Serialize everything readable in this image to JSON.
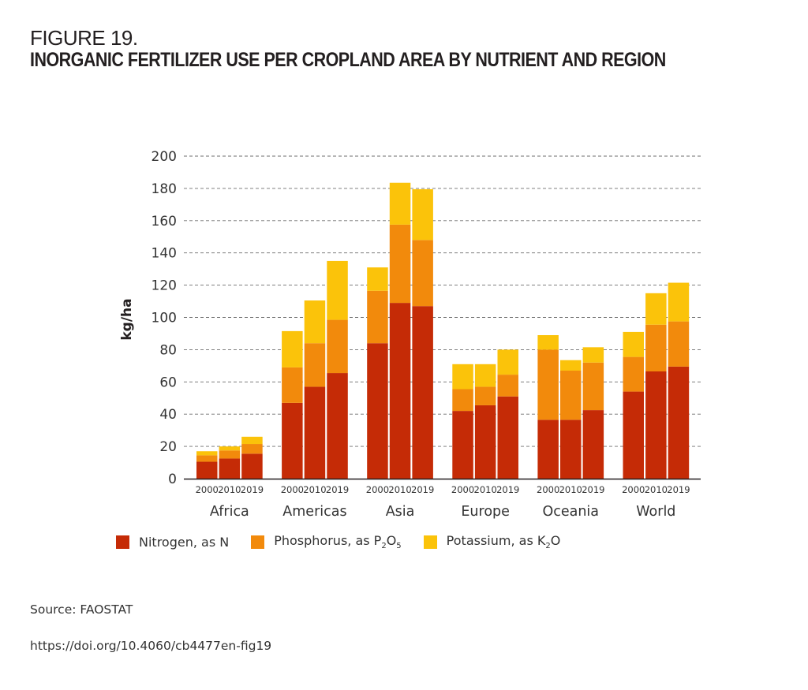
{
  "figure": {
    "label": "FIGURE 19.",
    "title": "INORGANIC FERTILIZER USE PER CROPLAND AREA BY NUTRIENT AND REGION"
  },
  "footer": {
    "source": "Source: FAOSTAT",
    "doi": "https://doi.org/10.4060/cb4477en-fig19"
  },
  "legend": [
    {
      "label_main": "Nitrogen, as N",
      "formula": null,
      "color": "#c52b06"
    },
    {
      "label_main": "Phosphorus, as P",
      "sub1": "2",
      "mid": "O",
      "sub2": "5",
      "color": "#f28a0c"
    },
    {
      "label_main": "Potassium, as K",
      "sub1": "2",
      "mid": "O",
      "sub2": "",
      "color": "#fbc30a"
    }
  ],
  "chart_data": {
    "type": "bar",
    "stacked": true,
    "title": "INORGANIC FERTILIZER USE PER CROPLAND AREA BY NUTRIENT AND REGION",
    "xlabel": "",
    "ylabel": "kg/ha",
    "ylim": [
      0,
      200
    ],
    "yticks": [
      0,
      20,
      40,
      60,
      80,
      100,
      120,
      140,
      160,
      180,
      200
    ],
    "grid": "horizontal-dashed",
    "legend_position": "bottom",
    "groups": [
      "Africa",
      "Americas",
      "Asia",
      "Europe",
      "Oceania",
      "World"
    ],
    "years": [
      "2000",
      "2010",
      "2019"
    ],
    "series": [
      {
        "name": "Nitrogen, as N",
        "color": "#c52b06",
        "values": {
          "Africa": [
            10.5,
            12.5,
            15.5
          ],
          "Americas": [
            47,
            57,
            65.5
          ],
          "Asia": [
            84,
            109,
            107
          ],
          "Europe": [
            42,
            45.5,
            51
          ],
          "Oceania": [
            36.5,
            36.5,
            42.5
          ],
          "World": [
            54,
            66.5,
            69.5
          ]
        }
      },
      {
        "name": "Phosphorus, as P2O5",
        "color": "#f28a0c",
        "values": {
          "Africa": [
            4,
            5,
            6
          ],
          "Americas": [
            22,
            27,
            33
          ],
          "Asia": [
            32.5,
            48.5,
            41
          ],
          "Europe": [
            13.5,
            11.5,
            13.5
          ],
          "Oceania": [
            43.5,
            30.5,
            29.5
          ],
          "World": [
            21.5,
            29,
            28
          ]
        }
      },
      {
        "name": "Potassium, as K2O",
        "color": "#fbc30a",
        "values": {
          "Africa": [
            2.5,
            2.5,
            4.5
          ],
          "Americas": [
            22.5,
            26.5,
            36.5
          ],
          "Asia": [
            14.5,
            26,
            31.5
          ],
          "Europe": [
            15.5,
            14,
            15.5
          ],
          "Oceania": [
            9,
            6.5,
            9.5
          ],
          "World": [
            15.5,
            19.5,
            24
          ]
        }
      }
    ],
    "totals": {
      "Africa": [
        17,
        20,
        26
      ],
      "Americas": [
        91.5,
        110.5,
        135
      ],
      "Asia": [
        131,
        183.5,
        179.5
      ],
      "Europe": [
        71,
        71,
        80
      ],
      "Oceania": [
        89,
        73.5,
        81.5
      ],
      "World": [
        91,
        115,
        121.5
      ]
    }
  }
}
